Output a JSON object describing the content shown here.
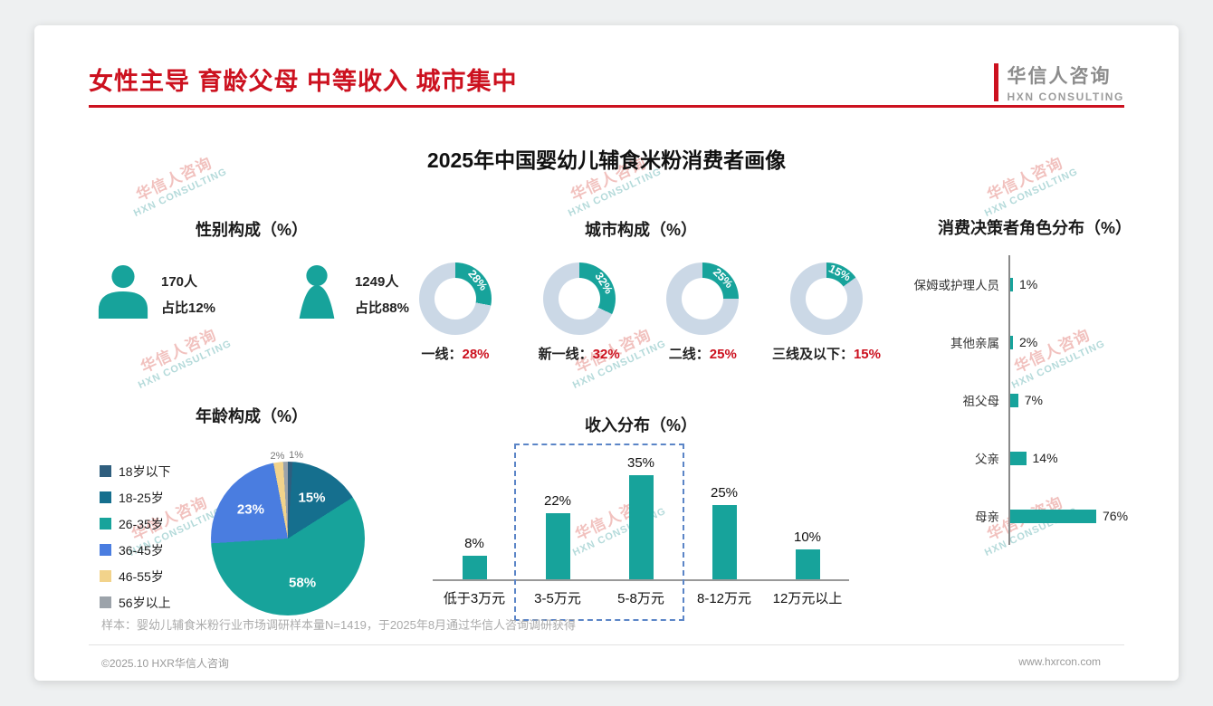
{
  "page": {
    "title": "女性主导 育龄父母 中等收入 城市集中",
    "main_title": "2025年中国婴幼儿辅食米粉消费者画像",
    "logo": {
      "name": "华信人咨询",
      "sub": "HXN CONSULTING"
    },
    "watermark": {
      "line1": "华信人咨询",
      "line2": "HXN CONSULTING"
    },
    "footnote": "样本：婴幼儿辅食米粉行业市场调研样本量N=1419，于2025年8月通过华信人咨询调研获得",
    "footer_left": "©2025.10 HXR华信人咨询",
    "footer_right": "www.hxrcon.com"
  },
  "colors": {
    "teal": "#17A39B",
    "red": "#CC111F",
    "track": "#CBD8E6",
    "dash": "#5B85C7",
    "axis": "#8A8A8A",
    "text": "#1A1A1A",
    "muted": "#9A9A9A"
  },
  "chart_data": [
    {
      "type": "table",
      "title": "性别构成（%）",
      "rows": [
        {
          "icon": "male-icon",
          "count": "170人",
          "share": "占比12%"
        },
        {
          "icon": "female-icon",
          "count": "1249人",
          "share": "占比88%"
        }
      ]
    },
    {
      "type": "pie",
      "subtype": "donut-multiples",
      "title": "城市构成（%）",
      "label_separator": "：",
      "items": [
        {
          "label": "一线",
          "value": 28
        },
        {
          "label": "新一线",
          "value": 32
        },
        {
          "label": "二线",
          "value": 25
        },
        {
          "label": "三线及以下",
          "value": 15
        }
      ]
    },
    {
      "type": "bar",
      "orientation": "horizontal",
      "title": "消费决策者角色分布（%）",
      "categories": [
        "保姆或护理人员",
        "其他亲属",
        "祖父母",
        "父亲",
        "母亲"
      ],
      "values": [
        1,
        2,
        7,
        14,
        76
      ],
      "value_suffix": "%"
    },
    {
      "type": "pie",
      "title": "年龄构成（%）",
      "items": [
        {
          "label": "18岁以下",
          "value": 1,
          "color": "#2F5E7E"
        },
        {
          "label": "18-25岁",
          "value": 15,
          "color": "#156F8E"
        },
        {
          "label": "26-35岁",
          "value": 58,
          "color": "#17A39B"
        },
        {
          "label": "36-45岁",
          "value": 23,
          "color": "#4A7DE0"
        },
        {
          "label": "46-55岁",
          "value": 2,
          "color": "#F2D38B"
        },
        {
          "label": "56岁以上",
          "value": 1,
          "color": "#9CA3AA"
        }
      ]
    },
    {
      "type": "bar",
      "orientation": "vertical",
      "title": "收入分布（%）",
      "categories": [
        "低于3万元",
        "3-5万元",
        "5-8万元",
        "8-12万元",
        "12万元以上"
      ],
      "values": [
        8,
        22,
        35,
        25,
        10
      ],
      "value_suffix": "%",
      "highlight_range": [
        "3-5万元",
        "5-8万元"
      ]
    }
  ]
}
